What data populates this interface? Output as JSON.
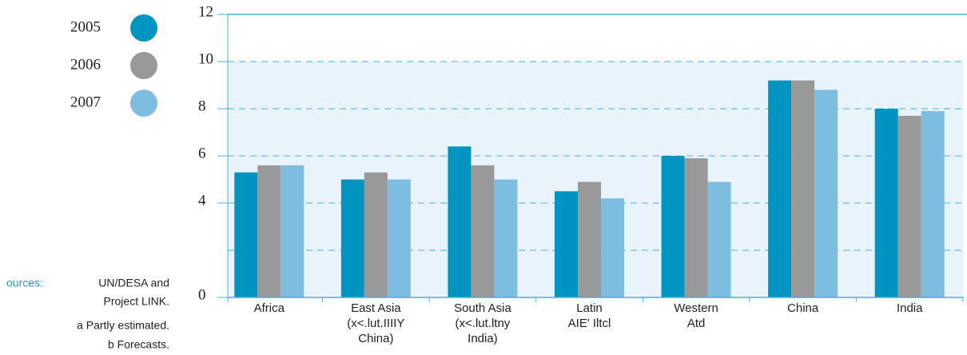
{
  "chart_data": {
    "type": "bar",
    "categories": [
      [
        "Africa"
      ],
      [
        "East Asia",
        "(x<.lut.IIIIY",
        "China)"
      ],
      [
        "South Asia",
        "(x<.lut.ltny",
        "India)"
      ],
      [
        "Latin",
        "AIE' Iltcl"
      ],
      [
        "Western",
        "Atd"
      ],
      [
        "China"
      ],
      [
        "India"
      ]
    ],
    "series": [
      {
        "name": "2005",
        "color": "#0095c0",
        "values": [
          5.3,
          5.0,
          6.4,
          4.5,
          6.0,
          9.2,
          8.0
        ]
      },
      {
        "name": "2006",
        "color": "#999999",
        "values": [
          5.6,
          5.3,
          5.6,
          4.9,
          5.9,
          9.2,
          7.7
        ]
      },
      {
        "name": "2007",
        "color": "#7dbde0",
        "values": [
          5.6,
          5.0,
          5.0,
          4.2,
          4.9,
          8.8,
          7.9
        ]
      }
    ],
    "ylim": [
      0,
      12
    ],
    "yticks": [
      0,
      4,
      6,
      8,
      10,
      12
    ],
    "grid_values": [
      2,
      4,
      6,
      8,
      10
    ],
    "grid": true,
    "legend": "left",
    "notes": {
      "sources_label": "ources:",
      "sources": [
        "UN/DESA and",
        "Project LINK."
      ],
      "footnotes": [
        "a  Partly estimated.",
        "b  Forecasts."
      ]
    }
  }
}
